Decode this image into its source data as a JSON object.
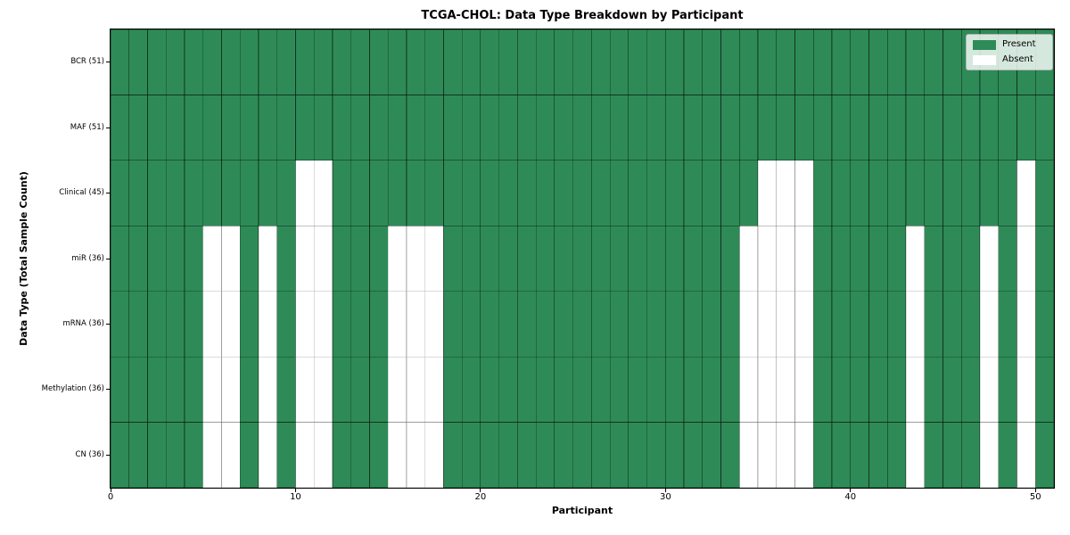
{
  "figure": {
    "title": "TCGA-CHOL: Data Type Breakdown by Participant",
    "xlabel": "Participant",
    "ylabel": "Data Type (Total Sample Count)",
    "legend": {
      "present_label": "Present",
      "absent_label": "Absent"
    }
  },
  "chart_data": {
    "type": "heatmap",
    "title": "TCGA-CHOL: Data Type Breakdown by Participant",
    "xlabel": "Participant",
    "ylabel": "Data Type (Total Sample Count)",
    "n_participants": 51,
    "x_ticks": [
      0,
      10,
      20,
      30,
      40,
      50
    ],
    "x_range": [
      0,
      51
    ],
    "grid": true,
    "legend_position": "upper right",
    "legend": [
      {
        "label": "Present",
        "color": "#2e8b57"
      },
      {
        "label": "Absent",
        "color": "#ffffff"
      }
    ],
    "colors": {
      "present": "#2e8b57",
      "absent": "#ffffff",
      "cell_border_on_present": "rgba(0,0,0,0.50)",
      "cell_border_on_absent": "rgba(0,0,0,0.28)"
    },
    "rows": [
      {
        "label": "BCR (51)",
        "name": "BCR",
        "total_samples": 51,
        "absent_participants": []
      },
      {
        "label": "MAF (51)",
        "name": "MAF",
        "total_samples": 51,
        "absent_participants": []
      },
      {
        "label": "Clinical (45)",
        "name": "Clinical",
        "total_samples": 45,
        "absent_participants": [
          10,
          11,
          35,
          36,
          37,
          49
        ]
      },
      {
        "label": "miR (36)",
        "name": "miR",
        "total_samples": 36,
        "absent_participants": [
          5,
          6,
          8,
          10,
          11,
          15,
          16,
          17,
          34,
          35,
          36,
          37,
          43,
          47,
          49
        ]
      },
      {
        "label": "mRNA (36)",
        "name": "mRNA",
        "total_samples": 36,
        "absent_participants": [
          5,
          6,
          8,
          10,
          11,
          15,
          16,
          17,
          34,
          35,
          36,
          37,
          43,
          47,
          49
        ]
      },
      {
        "label": "Methylation (36)",
        "name": "Methylation",
        "total_samples": 36,
        "absent_participants": [
          5,
          6,
          8,
          10,
          11,
          15,
          16,
          17,
          34,
          35,
          36,
          37,
          43,
          47,
          49
        ]
      },
      {
        "label": "CN (36)",
        "name": "CN",
        "total_samples": 36,
        "absent_participants": [
          5,
          6,
          8,
          10,
          11,
          15,
          16,
          17,
          34,
          35,
          36,
          37,
          43,
          47,
          49
        ]
      }
    ]
  }
}
